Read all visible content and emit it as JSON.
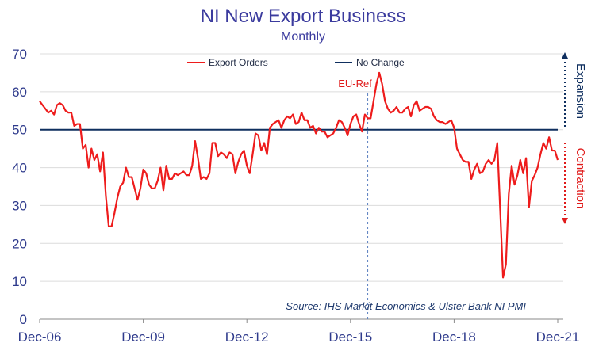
{
  "chart_data": {
    "type": "line",
    "title": "NI New Export Business",
    "subtitle": "Monthly",
    "ylim": [
      0,
      70
    ],
    "y_ticks": [
      "0",
      "10",
      "20",
      "30",
      "40",
      "50",
      "60",
      "70"
    ],
    "x_tick_labels": [
      "Dec-06",
      "Dec-09",
      "Dec-12",
      "Dec-15",
      "Dec-18",
      "Dec-21"
    ],
    "x_range": [
      "Dec-06",
      "Dec-21"
    ],
    "grid": "horizontal",
    "legend_position": "top",
    "series": [
      {
        "name": "Export Orders",
        "color": "#ee1c1c",
        "x_start": "Dec-06",
        "frequency": "monthly",
        "values": [
          57.5,
          56.5,
          55.5,
          54.5,
          55,
          54,
          56.5,
          57,
          56.5,
          55,
          54.5,
          54.5,
          51,
          51.5,
          51.5,
          45,
          46,
          40,
          45,
          42,
          43.5,
          39,
          44,
          32.5,
          24.5,
          24.5,
          28,
          32,
          35,
          36,
          40,
          37.5,
          37.5,
          34.5,
          31.5,
          34.5,
          39.5,
          38.5,
          35.5,
          34.5,
          34.5,
          36.5,
          40,
          34,
          40.5,
          37,
          37,
          38.5,
          38,
          38.5,
          39,
          38,
          38,
          40.5,
          47,
          42.5,
          37,
          37.5,
          37,
          38.5,
          46.5,
          46.5,
          43,
          44,
          43.5,
          42.5,
          44,
          43.5,
          38.5,
          41.5,
          43.5,
          44.5,
          40.5,
          38.5,
          43.5,
          49,
          48.5,
          44.5,
          46.5,
          43.5,
          50.5,
          51.5,
          52,
          52.5,
          50.5,
          52.5,
          53.5,
          53,
          54,
          51.5,
          52,
          54.5,
          52.5,
          52.5,
          50.5,
          51,
          49,
          50.5,
          49.5,
          49.5,
          48,
          48.5,
          49,
          50.5,
          52.5,
          52,
          50.5,
          48.5,
          51.5,
          53.5,
          54,
          51.5,
          49.5,
          54,
          53,
          53,
          57.5,
          62,
          65,
          62,
          57.5,
          55.5,
          54.5,
          55,
          56,
          54.5,
          54.5,
          55.5,
          56,
          53.5,
          56.5,
          57.5,
          55,
          55.5,
          56,
          56,
          55.5,
          53.5,
          52.5,
          52,
          52,
          51.5,
          52,
          52.5,
          50.5,
          45,
          43.5,
          42,
          41.5,
          41.5,
          37,
          39.5,
          41,
          38.5,
          39,
          41,
          42,
          41,
          42,
          46.5,
          29,
          11,
          14.5,
          33,
          40.5,
          35.5,
          38,
          42,
          38.5,
          42.5,
          29.5,
          36.5,
          38,
          40,
          43.5,
          46.5,
          45,
          48,
          44.5,
          44.5,
          42
        ]
      },
      {
        "name": "No Change",
        "color": "#0f2f5f",
        "values": [
          50
        ]
      }
    ],
    "annotations": [
      {
        "text": "EU-Ref",
        "x": "Jun-16",
        "style": "dashed vertical line"
      }
    ],
    "side_labels": {
      "expansion": "Expansion",
      "contraction": "Contraction"
    },
    "source": "Source: IHS Markit Economics & Ulster Bank NI PMI"
  }
}
